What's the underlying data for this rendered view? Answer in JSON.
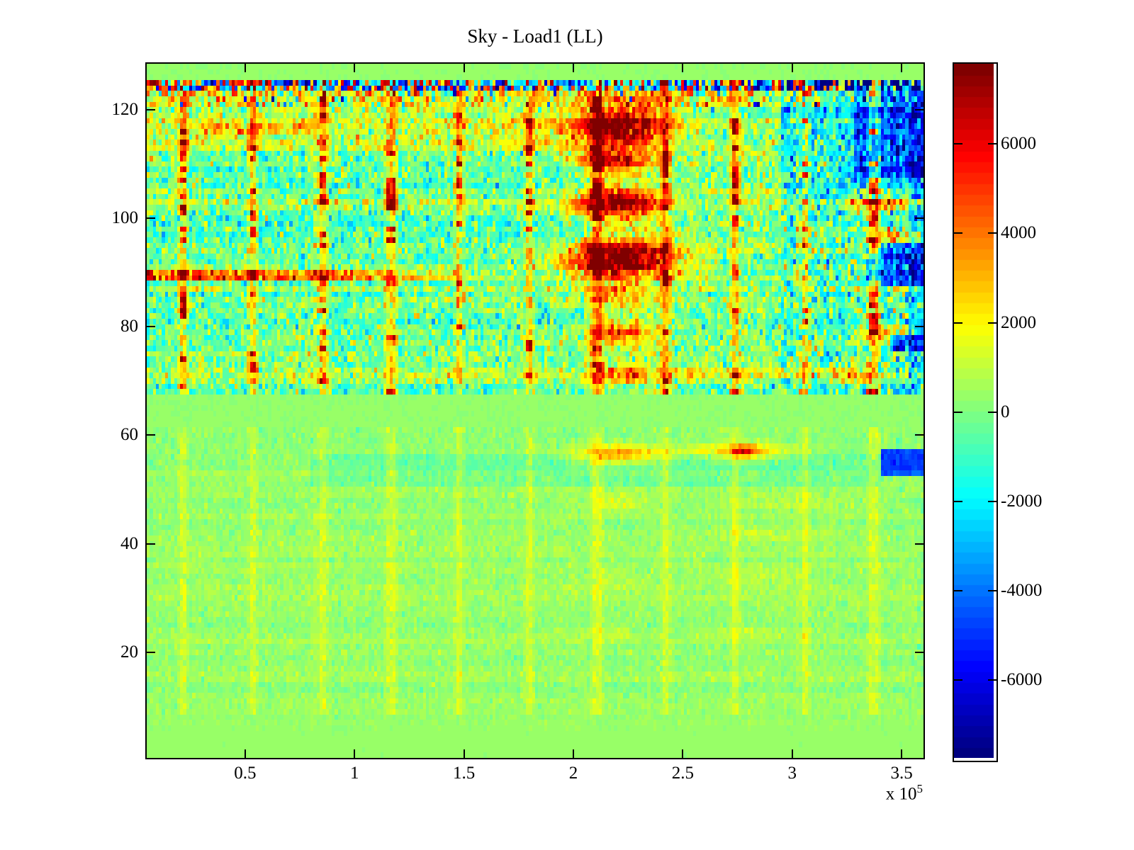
{
  "chart_data": {
    "type": "heatmap",
    "title": "Sky - Load1 (LL)",
    "colormap": "jet",
    "x_range": [
      5000,
      360000
    ],
    "y_range": [
      0.5,
      128.5
    ],
    "x_ticks": [
      {
        "label": "0.5",
        "value": 50000
      },
      {
        "label": "1",
        "value": 100000
      },
      {
        "label": "1.5",
        "value": 150000
      },
      {
        "label": "2",
        "value": 200000
      },
      {
        "label": "2.5",
        "value": 250000
      },
      {
        "label": "3",
        "value": 300000
      },
      {
        "label": "3.5",
        "value": 350000
      }
    ],
    "x_scale": {
      "prefix": "x 10",
      "exponent": "5"
    },
    "y_ticks": [
      {
        "label": "20",
        "value": 20
      },
      {
        "label": "40",
        "value": 40
      },
      {
        "label": "60",
        "value": 60
      },
      {
        "label": "80",
        "value": 80
      },
      {
        "label": "100",
        "value": 100
      },
      {
        "label": "120",
        "value": 120
      }
    ],
    "colorbar": {
      "clim": [
        -7750,
        7800
      ],
      "levels": 64,
      "ticks": [
        {
          "label": "6000",
          "value": 6000
        },
        {
          "label": "4000",
          "value": 4000
        },
        {
          "label": "2000",
          "value": 2000
        },
        {
          "label": "0",
          "value": 0
        },
        {
          "label": "-2000",
          "value": -2000
        },
        {
          "label": "-4000",
          "value": -4000
        },
        {
          "label": "-6000",
          "value": -6000
        }
      ]
    },
    "grid": {
      "cols": 256,
      "rows": 128
    },
    "paint": {
      "seed": 1337,
      "base_value": 300,
      "regions": {
        "top_flat_above_row": 125.6,
        "speckle_rows": [
          123.9,
          125.6
        ],
        "warm_rows": [
          120.8,
          123.9
        ],
        "quiet_band_rows": [
          62.0,
          67.2
        ],
        "upper_base": 250,
        "upper_noise_sd": 1050,
        "upper_right_x_start": 295000,
        "upper_right_noise_sd": 1500,
        "row_offset_upper": 850,
        "col_offset_upper": 220,
        "lower_base": 380,
        "lower_noise_sd": 300,
        "row_offset_lower": 260,
        "col_offset_lower": 70,
        "lower_fade_row": 11,
        "warm_mean": 1700,
        "warm_sd": 1700,
        "warm_blue_prob": 0.05,
        "speckle_min": 900
      },
      "h_bands": [
        {
          "rows": [
            113.0,
            120.8
          ],
          "x": [
            5000,
            195000
          ],
          "dv": 900
        },
        {
          "rows": [
            116.0,
            117.2
          ],
          "x": [
            30000,
            80000
          ],
          "dv": 1500
        },
        {
          "rows": [
            94.0,
            100.0
          ],
          "x": [
            5000,
            205000
          ],
          "dv": -850
        },
        {
          "rows": [
            104.0,
            112.0
          ],
          "x": [
            20000,
            205000
          ],
          "dv": -650
        },
        {
          "rows": [
            67.5,
            93.0
          ],
          "x": [
            5000,
            205000
          ],
          "dv": -250
        },
        {
          "rows": [
            104.0,
            126.0
          ],
          "x": [
            295000,
            360000
          ],
          "dv": -2000
        },
        {
          "rows": [
            67.5,
            104.0
          ],
          "x": [
            295000,
            360000
          ],
          "dv": -700
        },
        {
          "rows": [
            108.0,
            126.0
          ],
          "x": [
            328000,
            360000
          ],
          "dv": -2800
        },
        {
          "rows": [
            87.5,
            95.0
          ],
          "x": [
            333000,
            360000
          ],
          "dv": -3800
        },
        {
          "rows": [
            76.0,
            78.5
          ],
          "x": [
            345000,
            360000
          ],
          "dv": -3800
        },
        {
          "rows": [
            52.5,
            57.0
          ],
          "x": [
            341000,
            360000
          ],
          "dv": -5000
        },
        {
          "rows": [
            51.0,
            56.0
          ],
          "x": [
            80000,
            340000
          ],
          "dv": -550
        },
        {
          "rows": [
            67.5,
            126.0
          ],
          "x": [
            205000,
            245000
          ],
          "dv": 550
        },
        {
          "rows": [
            70.5,
            72.3
          ],
          "x": [
            215000,
            335000
          ],
          "dv": 900
        },
        {
          "rows": [
            67.5,
            126.0
          ],
          "x": [
            353000,
            360000
          ],
          "dv": -1500
        }
      ],
      "blobs": [
        {
          "x": 220000,
          "row": 117.0,
          "sx": 16000,
          "sy": 2.7,
          "amp": 8200
        },
        {
          "x": 218000,
          "row": 110.5,
          "sx": 12000,
          "sy": 1.5,
          "amp": 5200
        },
        {
          "x": 219000,
          "row": 102.5,
          "sx": 14000,
          "sy": 1.9,
          "amp": 7200
        },
        {
          "x": 221000,
          "row": 92.5,
          "sx": 18000,
          "sy": 2.3,
          "amp": 9000
        },
        {
          "x": 220000,
          "row": 86.0,
          "sx": 13000,
          "sy": 1.3,
          "amp": 2700
        },
        {
          "x": 219000,
          "row": 79.0,
          "sx": 11000,
          "sy": 1.3,
          "amp": 5200
        },
        {
          "x": 220000,
          "row": 71.0,
          "sx": 11000,
          "sy": 1.1,
          "amp": 2500
        },
        {
          "x": 341000,
          "row": 103.0,
          "sx": 9000,
          "sy": 1.2,
          "amp": 4300
        },
        {
          "x": 347000,
          "row": 96.5,
          "sx": 8000,
          "sy": 1.0,
          "amp": 4300
        },
        {
          "x": 340000,
          "row": 79.0,
          "sx": 9000,
          "sy": 1.2,
          "amp": 3900
        },
        {
          "x": 330000,
          "row": 71.0,
          "sx": 9000,
          "sy": 1.0,
          "amp": 2300
        },
        {
          "x": 221000,
          "row": 56.5,
          "sx": 14000,
          "sy": 1.2,
          "amp": 3200
        },
        {
          "x": 276000,
          "row": 57.0,
          "sx": 15000,
          "sy": 1.0,
          "amp": 2500
        },
        {
          "x": 278000,
          "row": 57.0,
          "sx": 3500,
          "sy": 0.8,
          "amp": 3400
        },
        {
          "x": 220000,
          "row": 47.5,
          "sx": 12000,
          "sy": 1.3,
          "amp": 1100
        },
        {
          "x": 300000,
          "row": 47.5,
          "sx": 22000,
          "sy": 1.0,
          "amp": 850
        },
        {
          "x": 285000,
          "row": 42.0,
          "sx": 18000,
          "sy": 1.0,
          "amp": 750
        },
        {
          "x": 282000,
          "row": 34.0,
          "sx": 16000,
          "sy": 1.0,
          "amp": 700
        },
        {
          "x": 220000,
          "row": 33.0,
          "sx": 12000,
          "sy": 1.0,
          "amp": 650
        },
        {
          "x": 215000,
          "row": 24.0,
          "sx": 12000,
          "sy": 1.0,
          "amp": 500
        },
        {
          "x": 285000,
          "row": 24.0,
          "sx": 15000,
          "sy": 1.0,
          "amp": 500
        }
      ],
      "v_lines": {
        "xs": [
          22000,
          53500,
          85000,
          116500,
          148000,
          179500,
          211000,
          242500,
          274000,
          305500,
          337000
        ],
        "upper_amp": 2300,
        "upper_seg_amp": 4300,
        "lower_amp": 850,
        "seg_prob": 0.22,
        "seg_prob_mid": 0.45,
        "mid_rows": [
          98,
          114
        ],
        "halo_factor": 0.35
      },
      "h_line": {
        "rows": [
          88.8,
          90.6
        ],
        "x_start": 5000,
        "x_fade_start": 95000,
        "x_end": 170000,
        "amp": 4300,
        "noise": 900
      }
    }
  }
}
